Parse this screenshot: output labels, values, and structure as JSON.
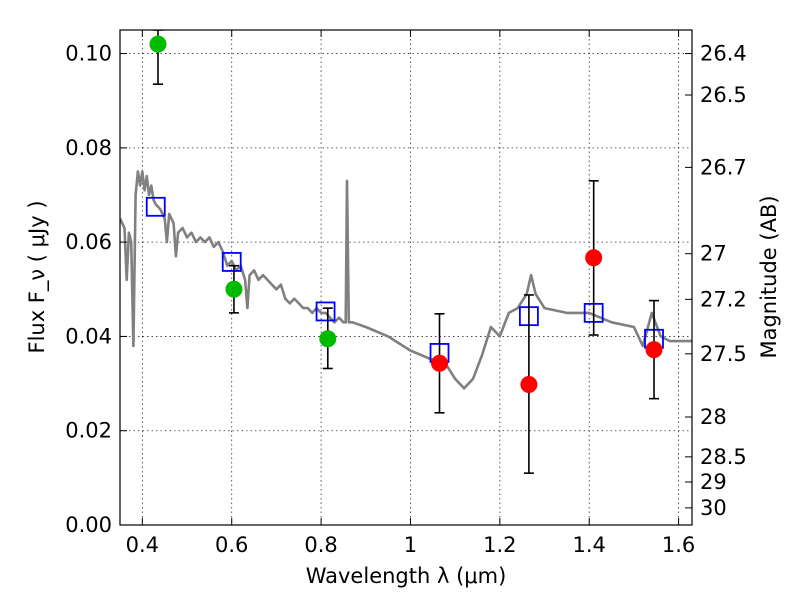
{
  "chart_data": {
    "type": "scatter",
    "xlabel": "Wavelength  λ (μm)",
    "ylabel": "Flux  F_ν  ( μJy )",
    "y2label": "Magnitude (AB)",
    "xlim": [
      0.35,
      1.63
    ],
    "ylim": [
      0.0,
      0.105
    ],
    "grid": true,
    "x_ticks": [
      {
        "value": 0.4,
        "label": "0.4"
      },
      {
        "value": 0.6,
        "label": "0.6"
      },
      {
        "value": 0.8,
        "label": "0.8"
      },
      {
        "value": 1.0,
        "label": "1"
      },
      {
        "value": 1.2,
        "label": "1.2"
      },
      {
        "value": 1.4,
        "label": "1.4"
      },
      {
        "value": 1.6,
        "label": "1.6"
      }
    ],
    "y_ticks": [
      {
        "value": 0.0,
        "label": "0.00"
      },
      {
        "value": 0.02,
        "label": "0.02"
      },
      {
        "value": 0.04,
        "label": "0.04"
      },
      {
        "value": 0.06,
        "label": "0.06"
      },
      {
        "value": 0.08,
        "label": "0.08"
      },
      {
        "value": 0.1,
        "label": "0.10"
      }
    ],
    "y2_ticks": [
      {
        "mag": 26.4,
        "label": "26.4"
      },
      {
        "mag": 26.5,
        "label": "26.5"
      },
      {
        "mag": 26.7,
        "label": "26.7"
      },
      {
        "mag": 27.0,
        "label": "27"
      },
      {
        "mag": 27.2,
        "label": "27.2"
      },
      {
        "mag": 27.5,
        "label": "27.5"
      },
      {
        "mag": 28.0,
        "label": "28"
      },
      {
        "mag": 28.5,
        "label": "28.5"
      },
      {
        "mag": 29.0,
        "label": "29"
      },
      {
        "mag": 30.0,
        "label": "30"
      }
    ],
    "colors": {
      "template": "#808080",
      "model_box": "#0000ff",
      "optical_point": "#00bb00",
      "nir_point": "#ff0000",
      "errorbar": "#000000"
    },
    "series": [
      {
        "kind": "template_line",
        "points": [
          [
            0.35,
            0.065
          ],
          [
            0.36,
            0.063
          ],
          [
            0.365,
            0.052
          ],
          [
            0.37,
            0.062
          ],
          [
            0.375,
            0.06
          ],
          [
            0.38,
            0.038
          ],
          [
            0.385,
            0.07
          ],
          [
            0.39,
            0.075
          ],
          [
            0.395,
            0.072
          ],
          [
            0.4,
            0.075
          ],
          [
            0.405,
            0.071
          ],
          [
            0.41,
            0.074
          ],
          [
            0.415,
            0.07
          ],
          [
            0.42,
            0.072
          ],
          [
            0.425,
            0.069
          ],
          [
            0.43,
            0.068
          ],
          [
            0.44,
            0.067
          ],
          [
            0.45,
            0.065
          ],
          [
            0.455,
            0.06
          ],
          [
            0.46,
            0.066
          ],
          [
            0.47,
            0.064
          ],
          [
            0.475,
            0.057
          ],
          [
            0.48,
            0.062
          ],
          [
            0.49,
            0.063
          ],
          [
            0.5,
            0.061
          ],
          [
            0.51,
            0.062
          ],
          [
            0.52,
            0.06
          ],
          [
            0.53,
            0.061
          ],
          [
            0.54,
            0.06
          ],
          [
            0.55,
            0.061
          ],
          [
            0.56,
            0.059
          ],
          [
            0.57,
            0.06
          ],
          [
            0.58,
            0.058
          ],
          [
            0.59,
            0.055
          ],
          [
            0.6,
            0.056
          ],
          [
            0.61,
            0.054
          ],
          [
            0.62,
            0.055
          ],
          [
            0.63,
            0.052
          ],
          [
            0.635,
            0.046
          ],
          [
            0.64,
            0.053
          ],
          [
            0.65,
            0.054
          ],
          [
            0.66,
            0.052
          ],
          [
            0.67,
            0.053
          ],
          [
            0.68,
            0.052
          ],
          [
            0.69,
            0.051
          ],
          [
            0.7,
            0.05
          ],
          [
            0.71,
            0.051
          ],
          [
            0.72,
            0.048
          ],
          [
            0.73,
            0.047
          ],
          [
            0.74,
            0.048
          ],
          [
            0.75,
            0.047
          ],
          [
            0.76,
            0.046
          ],
          [
            0.77,
            0.046
          ],
          [
            0.78,
            0.045
          ],
          [
            0.79,
            0.046
          ],
          [
            0.8,
            0.045
          ],
          [
            0.81,
            0.045
          ],
          [
            0.82,
            0.044
          ],
          [
            0.83,
            0.043
          ],
          [
            0.84,
            0.044
          ],
          [
            0.85,
            0.043
          ],
          [
            0.855,
            0.043
          ],
          [
            0.858,
            0.073
          ],
          [
            0.862,
            0.043
          ],
          [
            0.87,
            0.043
          ],
          [
            0.9,
            0.042
          ],
          [
            0.95,
            0.04
          ],
          [
            1.0,
            0.037
          ],
          [
            1.05,
            0.035
          ],
          [
            1.08,
            0.034
          ],
          [
            1.1,
            0.031
          ],
          [
            1.12,
            0.029
          ],
          [
            1.14,
            0.031
          ],
          [
            1.16,
            0.036
          ],
          [
            1.18,
            0.042
          ],
          [
            1.2,
            0.04
          ],
          [
            1.22,
            0.045
          ],
          [
            1.24,
            0.046
          ],
          [
            1.26,
            0.049
          ],
          [
            1.27,
            0.053
          ],
          [
            1.28,
            0.049
          ],
          [
            1.3,
            0.046
          ],
          [
            1.35,
            0.045
          ],
          [
            1.4,
            0.045
          ],
          [
            1.45,
            0.043
          ],
          [
            1.5,
            0.042
          ],
          [
            1.52,
            0.038
          ],
          [
            1.54,
            0.045
          ],
          [
            1.56,
            0.04
          ],
          [
            1.58,
            0.039
          ],
          [
            1.6,
            0.039
          ],
          [
            1.63,
            0.039
          ]
        ]
      },
      {
        "kind": "model_boxes",
        "points": [
          [
            0.43,
            0.0675
          ],
          [
            0.6,
            0.0558
          ],
          [
            0.81,
            0.0453
          ],
          [
            1.065,
            0.0365
          ],
          [
            1.265,
            0.0443
          ],
          [
            1.41,
            0.045
          ],
          [
            1.545,
            0.0395
          ]
        ]
      },
      {
        "kind": "optical_observations",
        "points": [
          {
            "x": 0.435,
            "y": 0.102,
            "err_low": 0.0935,
            "err_high": 0.105
          },
          {
            "x": 0.605,
            "y": 0.05,
            "err_low": 0.045,
            "err_high": 0.055
          },
          {
            "x": 0.815,
            "y": 0.0395,
            "err_low": 0.0332,
            "err_high": 0.046
          }
        ]
      },
      {
        "kind": "nir_observations",
        "points": [
          {
            "x": 1.065,
            "y": 0.0343,
            "err_low": 0.0238,
            "err_high": 0.0448
          },
          {
            "x": 1.265,
            "y": 0.0298,
            "err_low": 0.011,
            "err_high": 0.0488
          },
          {
            "x": 1.41,
            "y": 0.0567,
            "err_low": 0.0403,
            "err_high": 0.073
          },
          {
            "x": 1.545,
            "y": 0.0372,
            "err_low": 0.0268,
            "err_high": 0.0476
          }
        ]
      }
    ]
  }
}
